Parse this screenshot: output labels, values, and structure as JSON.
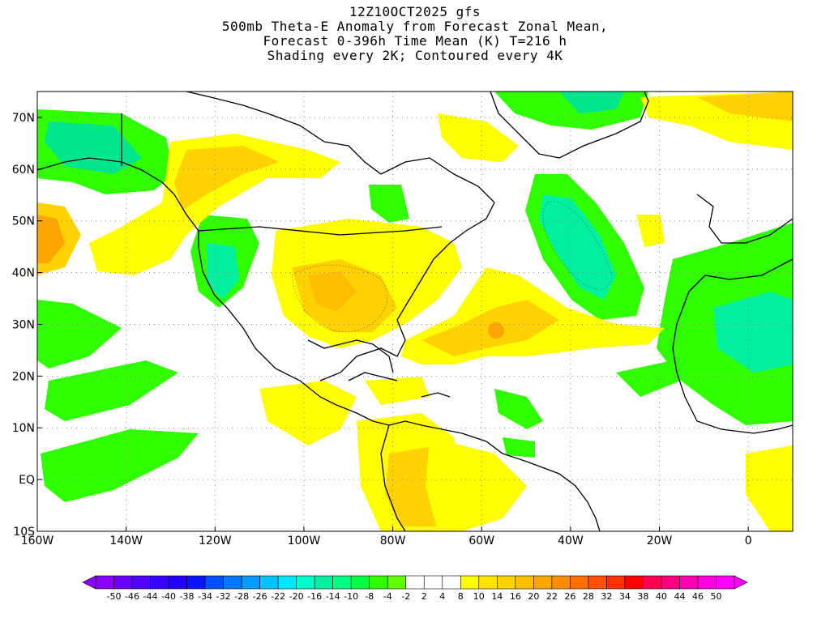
{
  "titles": {
    "line1": "12Z10OCT2025 gfs",
    "line2": "500mb Theta-E Anomaly from Forecast Zonal Mean,",
    "line3": "Forecast 0-396h Time Mean (K) T=216 h",
    "line4": "Shading every 2K; Contoured every 4K"
  },
  "axes": {
    "lat_labels": [
      "70N",
      "60N",
      "50N",
      "40N",
      "30N",
      "20N",
      "10N",
      "EQ",
      "10S"
    ],
    "lon_labels": [
      "160W",
      "140W",
      "120W",
      "100W",
      "80W",
      "60W",
      "40W",
      "20W",
      "0"
    ]
  },
  "map_extent": {
    "lon_min": -160,
    "lon_max": 10,
    "lat_min": -10,
    "lat_max": 75
  },
  "field": {
    "quantity": "500mb Theta-E Anomaly",
    "units": "K",
    "regions": [
      {
        "area": "Alaska / Gulf of Alaska",
        "sign": "negative",
        "peak": -14
      },
      {
        "area": "US West Coast",
        "sign": "negative",
        "peak": -16
      },
      {
        "area": "Central / Eastern US",
        "sign": "positive",
        "peak": 10
      },
      {
        "area": "Western Atlantic",
        "sign": "positive",
        "peak": 14
      },
      {
        "area": "North Atlantic (40W-50N)",
        "sign": "negative",
        "peak": -14
      },
      {
        "area": "Greenland / Arctic",
        "sign": "negative",
        "peak": -10
      },
      {
        "area": "Northeast Atlantic (70N)",
        "sign": "positive",
        "peak": 10
      },
      {
        "area": "North Africa / Western Europe",
        "sign": "negative",
        "peak": -10
      },
      {
        "area": "South America",
        "sign": "positive",
        "peak": 8
      },
      {
        "area": "Eastern Tropical Pacific",
        "sign": "negative",
        "peak": -8
      },
      {
        "area": "Northeast Pacific (50N)",
        "sign": "positive",
        "peak": 8
      }
    ]
  },
  "colorbar": {
    "labels": [
      "-50",
      "-46",
      "-44",
      "-40",
      "-38",
      "-34",
      "-32",
      "-28",
      "-26",
      "-22",
      "-20",
      "-16",
      "-14",
      "-10",
      "-8",
      "-4",
      "-2",
      "2",
      "4",
      "8",
      "10",
      "14",
      "16",
      "20",
      "22",
      "26",
      "28",
      "32",
      "34",
      "38",
      "40",
      "44",
      "46",
      "50"
    ],
    "colors": [
      "#8b00ff",
      "#6a00ff",
      "#5200ff",
      "#3a00ff",
      "#2200ff",
      "#0a14ff",
      "#0050ff",
      "#0078ff",
      "#009bff",
      "#00c3ff",
      "#00e6ff",
      "#00ffcc",
      "#00f0a0",
      "#00ff80",
      "#00ff40",
      "#30ff00",
      "#60ff00",
      "#ffffff",
      "#ffffff",
      "#ffffff",
      "#ffff00",
      "#ffe600",
      "#ffd200",
      "#ffbe00",
      "#ffa500",
      "#ff8c00",
      "#ff7000",
      "#ff5000",
      "#ff3000",
      "#ff0000",
      "#ff0050",
      "#ff0080",
      "#ff00b0",
      "#ff00e0",
      "#ff00ff"
    ]
  }
}
